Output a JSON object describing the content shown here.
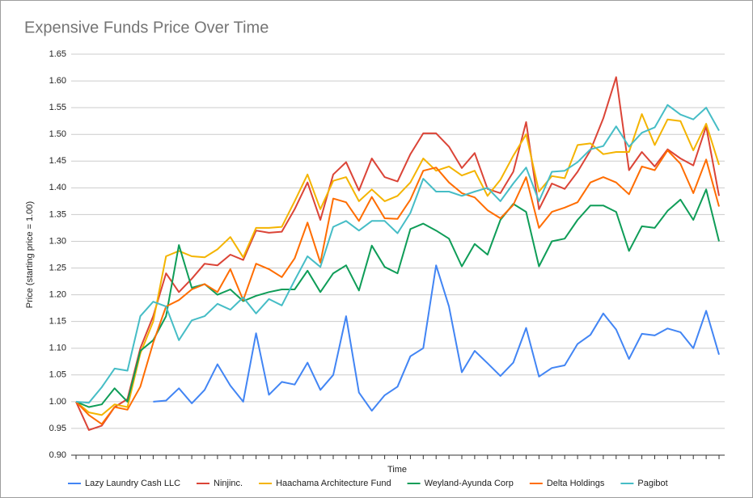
{
  "chart_data": {
    "type": "line",
    "title": "Expensive Funds Price Over Time",
    "x_label": "Time",
    "y_label": "Price (starting price = 1.00)",
    "categories": [
      null,
      null,
      null,
      null,
      null,
      null,
      null,
      null,
      null,
      null,
      null,
      null,
      null,
      null,
      null,
      null,
      null,
      null,
      null,
      null,
      null,
      null,
      null,
      null,
      null,
      null,
      null,
      null,
      null,
      null,
      null,
      null,
      null,
      null,
      null,
      null,
      null,
      null,
      null,
      null,
      null,
      null,
      null,
      null,
      null,
      null,
      null,
      null,
      null,
      null,
      null
    ],
    "ylim": [
      0.9,
      1.65
    ],
    "yticks": [
      {
        "value": 0.9,
        "label": "0.90"
      },
      {
        "value": 0.95,
        "label": "0.95"
      },
      {
        "value": 1.0,
        "label": "1.00"
      },
      {
        "value": 1.05,
        "label": "1.05"
      },
      {
        "value": 1.1,
        "label": "1.10"
      },
      {
        "value": 1.15,
        "label": "1.15"
      },
      {
        "value": 1.2,
        "label": "1.20"
      },
      {
        "value": 1.25,
        "label": "1.25"
      },
      {
        "value": 1.3,
        "label": "1.30"
      },
      {
        "value": 1.35,
        "label": "1.35"
      },
      {
        "value": 1.4,
        "label": "1.40"
      },
      {
        "value": 1.45,
        "label": "1.45"
      },
      {
        "value": 1.5,
        "label": "1.50"
      },
      {
        "value": 1.55,
        "label": "1.55"
      },
      {
        "value": 1.6,
        "label": "1.60"
      },
      {
        "value": 1.65,
        "label": "1.65"
      }
    ],
    "grid": true,
    "legend": "bottom",
    "series": [
      {
        "name": "Lazy Laundry Cash LLC",
        "color": "#4285f4",
        "values": [
          1.0,
          null,
          null,
          null,
          null,
          null,
          1.0,
          1.002,
          1.025,
          0.997,
          1.022,
          1.07,
          1.03,
          1.0,
          1.128,
          1.013,
          1.037,
          1.032,
          1.073,
          1.022,
          1.05,
          1.16,
          1.017,
          0.983,
          1.012,
          1.028,
          1.085,
          1.1,
          1.255,
          1.178,
          1.055,
          1.095,
          1.072,
          1.048,
          1.073,
          1.138,
          1.047,
          1.063,
          1.068,
          1.108,
          1.125,
          1.165,
          1.135,
          1.08,
          1.127,
          1.124,
          1.137,
          1.13,
          1.1,
          1.17,
          1.088
        ]
      },
      {
        "name": "Ninjinc.",
        "color": "#db4437",
        "values": [
          1.0,
          0.947,
          0.955,
          0.99,
          1.005,
          1.1,
          1.16,
          1.24,
          1.205,
          1.23,
          1.258,
          1.255,
          1.275,
          1.265,
          1.32,
          1.316,
          1.318,
          1.36,
          1.41,
          1.34,
          1.425,
          1.448,
          1.395,
          1.455,
          1.42,
          1.412,
          1.463,
          1.502,
          1.502,
          1.477,
          1.437,
          1.465,
          1.398,
          1.39,
          1.43,
          1.523,
          1.36,
          1.408,
          1.398,
          1.43,
          1.47,
          1.53,
          1.607,
          1.433,
          1.467,
          1.44,
          1.472,
          1.455,
          1.442,
          1.515,
          1.385
        ]
      },
      {
        "name": "Haachama Architecture Fund",
        "color": "#f4b400",
        "values": [
          1.0,
          0.98,
          0.975,
          0.995,
          0.99,
          1.09,
          1.15,
          1.272,
          1.282,
          1.272,
          1.27,
          1.285,
          1.308,
          1.27,
          1.325,
          1.325,
          1.327,
          1.375,
          1.425,
          1.36,
          1.413,
          1.42,
          1.375,
          1.397,
          1.375,
          1.385,
          1.41,
          1.455,
          1.432,
          1.44,
          1.423,
          1.432,
          1.385,
          1.415,
          1.46,
          1.5,
          1.393,
          1.422,
          1.418,
          1.48,
          1.483,
          1.463,
          1.467,
          1.467,
          1.538,
          1.48,
          1.528,
          1.525,
          1.47,
          1.52,
          1.443
        ]
      },
      {
        "name": "Weyland-Ayunda Corp",
        "color": "#0f9d58",
        "values": [
          1.0,
          0.99,
          0.995,
          1.025,
          1.0,
          1.095,
          1.115,
          1.16,
          1.293,
          1.213,
          1.22,
          1.2,
          1.21,
          1.188,
          1.198,
          1.205,
          1.21,
          1.21,
          1.245,
          1.205,
          1.24,
          1.255,
          1.208,
          1.292,
          1.252,
          1.24,
          1.323,
          1.333,
          1.32,
          1.305,
          1.253,
          1.295,
          1.275,
          1.34,
          1.37,
          1.355,
          1.253,
          1.3,
          1.305,
          1.34,
          1.367,
          1.367,
          1.355,
          1.282,
          1.328,
          1.325,
          1.357,
          1.378,
          1.34,
          1.397,
          1.3
        ]
      },
      {
        "name": "Delta Holdings",
        "color": "#ff6d01",
        "values": [
          1.0,
          0.975,
          0.958,
          0.99,
          0.985,
          1.028,
          1.11,
          1.178,
          1.19,
          1.21,
          1.22,
          1.205,
          1.248,
          1.19,
          1.258,
          1.248,
          1.233,
          1.268,
          1.335,
          1.26,
          1.38,
          1.373,
          1.338,
          1.383,
          1.343,
          1.342,
          1.378,
          1.432,
          1.438,
          1.41,
          1.39,
          1.382,
          1.358,
          1.343,
          1.368,
          1.42,
          1.325,
          1.355,
          1.363,
          1.373,
          1.41,
          1.42,
          1.41,
          1.388,
          1.44,
          1.433,
          1.47,
          1.445,
          1.39,
          1.453,
          1.365
        ]
      },
      {
        "name": "Pagibot",
        "color": "#46bdc6",
        "values": [
          1.0,
          0.998,
          1.027,
          1.062,
          1.058,
          1.16,
          1.187,
          1.178,
          1.115,
          1.152,
          1.16,
          1.183,
          1.172,
          1.195,
          1.165,
          1.192,
          1.18,
          1.227,
          1.272,
          1.252,
          1.327,
          1.338,
          1.32,
          1.338,
          1.338,
          1.315,
          1.353,
          1.417,
          1.393,
          1.393,
          1.385,
          1.393,
          1.4,
          1.375,
          1.408,
          1.438,
          1.375,
          1.43,
          1.432,
          1.448,
          1.472,
          1.478,
          1.515,
          1.477,
          1.503,
          1.513,
          1.555,
          1.537,
          1.528,
          1.55,
          1.507
        ]
      }
    ]
  }
}
